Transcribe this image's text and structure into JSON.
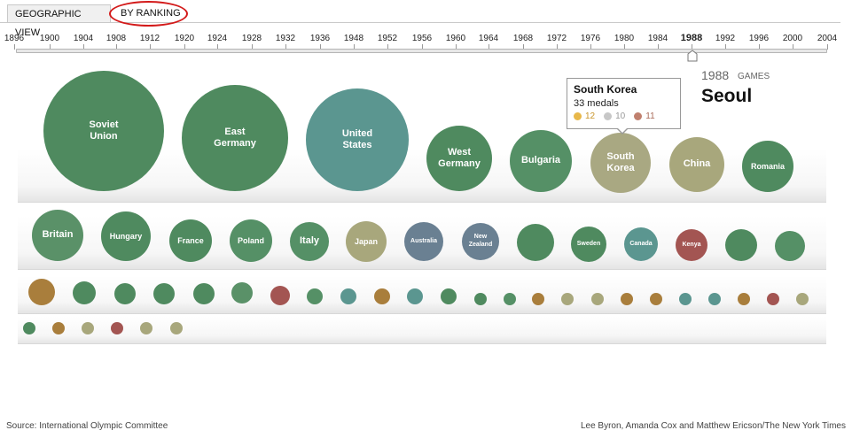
{
  "tabs": {
    "geographic_view": "GEOGRAPHIC VIEW",
    "by_ranking": "BY RANKING"
  },
  "timeline": {
    "years": [
      "1896",
      "1900",
      "1904",
      "1908",
      "1912",
      "1920",
      "1924",
      "1928",
      "1932",
      "1936",
      "1948",
      "1952",
      "1956",
      "1960",
      "1964",
      "1968",
      "1972",
      "1976",
      "1980",
      "1984",
      "1988",
      "1992",
      "1996",
      "2000",
      "2004"
    ],
    "selected": "1988"
  },
  "games": {
    "year": "1988",
    "label": "GAMES",
    "city": "Seoul"
  },
  "colors": {
    "green": "#4f8a5f",
    "teal": "#5b9690",
    "gold": "#a97e3c",
    "rose": "#a35552",
    "olive": "#a8a77c",
    "slate": "#6a8092"
  },
  "tooltip": {
    "country": "South Korea",
    "medals": "33 medals",
    "gold": "12",
    "silver": "10",
    "bronze": "11",
    "gold_color": "#e8b84a",
    "silver_color": "#c7c7c7",
    "bronze_color": "#c0806e"
  },
  "rows": {
    "row1": [
      {
        "label": "Soviet\nUnion",
        "color": "#4f8a5f"
      },
      {
        "label": "East\nGermany",
        "color": "#4f8a5f"
      },
      {
        "label": "United\nStates",
        "color": "#5b9690"
      },
      {
        "label": "West\nGermany",
        "color": "#4f8a5f"
      },
      {
        "label": "Bulgaria",
        "color": "#559066"
      },
      {
        "label": "South\nKorea",
        "color": "#a9a882"
      },
      {
        "label": "China",
        "color": "#a8a77c"
      },
      {
        "label": "Romania",
        "color": "#4f8a5f"
      }
    ],
    "row2": [
      {
        "label": "Britain",
        "color": "#5a9168"
      },
      {
        "label": "Hungary",
        "color": "#4f8a5f"
      },
      {
        "label": "France",
        "color": "#4f8a5f"
      },
      {
        "label": "Poland",
        "color": "#559066"
      },
      {
        "label": "Italy",
        "color": "#559066"
      },
      {
        "label": "Japan",
        "color": "#a8a77c"
      },
      {
        "label": "Australia",
        "color": "#6a8092"
      },
      {
        "label": "New\nZealand",
        "color": "#6a8092"
      },
      {
        "label": "",
        "color": "#4f8a5f"
      },
      {
        "label": "Sweden",
        "color": "#4f8a5f"
      },
      {
        "label": "Canada",
        "color": "#5b9690"
      },
      {
        "label": "Kenya",
        "color": "#a35552"
      },
      {
        "label": "",
        "color": "#4f8a5f"
      },
      {
        "label": "",
        "color": "#559066"
      }
    ],
    "row3": [
      {
        "color": "#a97e3c"
      },
      {
        "color": "#4f8a5f"
      },
      {
        "color": "#4f8a5f"
      },
      {
        "color": "#4f8a5f"
      },
      {
        "color": "#4f8a5f"
      },
      {
        "color": "#5a9168"
      },
      {
        "color": "#a35552"
      },
      {
        "color": "#559066"
      },
      {
        "color": "#5b9690"
      },
      {
        "color": "#a97e3c"
      },
      {
        "color": "#5b9690"
      },
      {
        "color": "#4f8a5f"
      },
      {
        "color": "#4f8a5f"
      },
      {
        "color": "#559066"
      },
      {
        "color": "#a97e3c"
      },
      {
        "color": "#a8a77c"
      },
      {
        "color": "#a8a77c"
      },
      {
        "color": "#a97e3c"
      },
      {
        "color": "#a97e3c"
      },
      {
        "color": "#5b9690"
      },
      {
        "color": "#5b9690"
      },
      {
        "color": "#a97e3c"
      },
      {
        "color": "#a35552"
      },
      {
        "color": "#a8a77c"
      }
    ],
    "row4": [
      {
        "color": "#4f8a5f"
      },
      {
        "color": "#a97e3c"
      },
      {
        "color": "#a8a77c"
      },
      {
        "color": "#a35552"
      },
      {
        "color": "#a8a77c"
      },
      {
        "color": "#a8a77c"
      }
    ]
  },
  "footer": {
    "source": "Source: International Olympic Committee",
    "credit": "Lee Byron, Amanda Cox and Matthew Ericson/The New York Times"
  }
}
